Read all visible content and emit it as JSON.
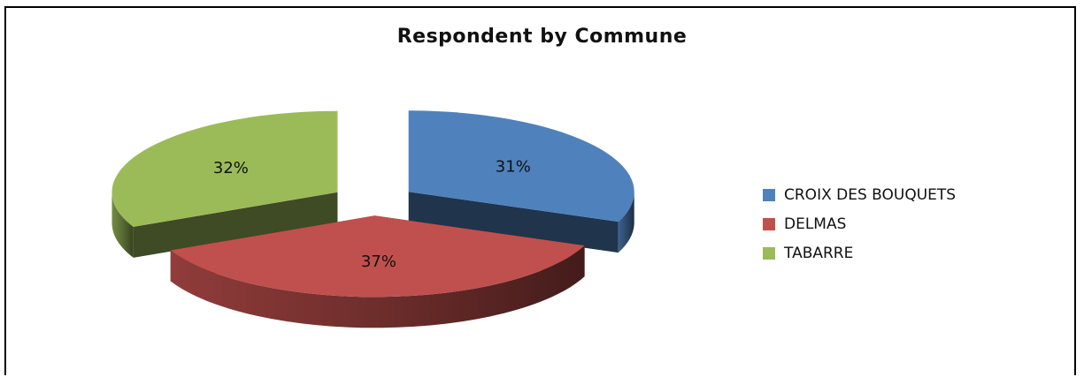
{
  "chart_data": {
    "type": "pie",
    "title": "Respondent by Commune",
    "categories": [
      "CROIX DES BOUQUETS",
      "DELMAS",
      "TABARRE"
    ],
    "values": [
      31,
      37,
      32
    ],
    "labels": [
      "31%",
      "37%",
      "32%"
    ],
    "colors": [
      "#4f81bd",
      "#c0504d",
      "#9bbb59"
    ],
    "exploded": true,
    "three_d": true,
    "legend_position": "right"
  }
}
